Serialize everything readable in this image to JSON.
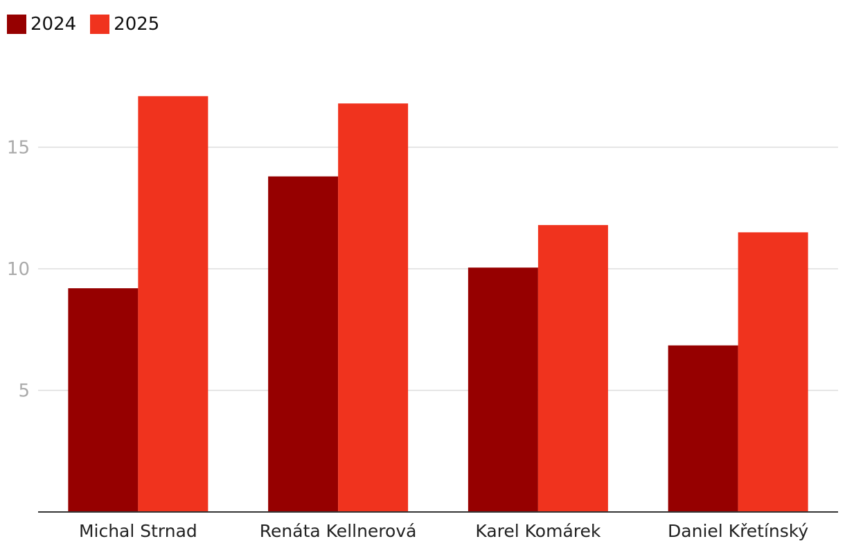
{
  "chart_data": {
    "type": "bar",
    "categories": [
      "Michal Strnad",
      "Renáta Kellnerová",
      "Karel Komárek",
      "Daniel Křetínský"
    ],
    "series": [
      {
        "name": "2024",
        "color": "#960000",
        "values": [
          9.2,
          13.8,
          10.05,
          6.85
        ]
      },
      {
        "name": "2025",
        "color": "#f0331e",
        "values": [
          17.1,
          16.8,
          11.8,
          11.5
        ]
      }
    ],
    "yticks": [
      5,
      10,
      15
    ],
    "ylim": [
      0,
      20
    ],
    "grid": true,
    "legend_position": "top-left"
  }
}
